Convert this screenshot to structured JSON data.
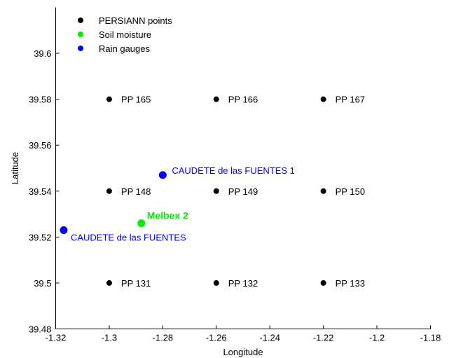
{
  "chart_data": {
    "type": "scatter",
    "xlabel": "Longitude",
    "ylabel": "Latitude",
    "xlim": [
      -1.32,
      -1.18
    ],
    "ylim": [
      39.48,
      39.62
    ],
    "x_ticks": [
      -1.32,
      -1.3,
      -1.28,
      -1.26,
      -1.24,
      -1.22,
      -1.2,
      -1.18
    ],
    "x_tick_labels": [
      "-1.32",
      "-1.3",
      "-1.28",
      "-1.26",
      "-1.24",
      "-1.22",
      "-1.2",
      "-1.18"
    ],
    "y_ticks": [
      39.48,
      39.5,
      39.52,
      39.54,
      39.56,
      39.58,
      39.6
    ],
    "y_tick_labels": [
      "39.48",
      "39.5",
      "39.52",
      "39.54",
      "39.56",
      "39.58",
      "39.6"
    ],
    "grid": false,
    "legend_position": "top-left",
    "series": [
      {
        "name": "PERSIANN points",
        "color": "#000000",
        "marker": "small",
        "points": [
          {
            "x": -1.3,
            "y": 39.58,
            "label": "PP 165"
          },
          {
            "x": -1.26,
            "y": 39.58,
            "label": "PP 166"
          },
          {
            "x": -1.22,
            "y": 39.58,
            "label": "PP 167"
          },
          {
            "x": -1.3,
            "y": 39.54,
            "label": "PP 148"
          },
          {
            "x": -1.26,
            "y": 39.54,
            "label": "PP 149"
          },
          {
            "x": -1.22,
            "y": 39.54,
            "label": "PP 150"
          },
          {
            "x": -1.3,
            "y": 39.5,
            "label": "PP 131"
          },
          {
            "x": -1.26,
            "y": 39.5,
            "label": "PP 132"
          },
          {
            "x": -1.22,
            "y": 39.5,
            "label": "PP 133"
          }
        ]
      },
      {
        "name": "Soil moisture",
        "color": "#00ee00",
        "marker": "large",
        "points": [
          {
            "x": -1.288,
            "y": 39.526,
            "label": "Melbex 2"
          }
        ]
      },
      {
        "name": "Rain gauges",
        "color": "#0000ff",
        "marker": "large",
        "points": [
          {
            "x": -1.28,
            "y": 39.547,
            "label": "CAUDETE de las FUENTES 1"
          },
          {
            "x": -1.317,
            "y": 39.523,
            "label": "CAUDETE de las  FUENTES"
          }
        ]
      }
    ]
  }
}
